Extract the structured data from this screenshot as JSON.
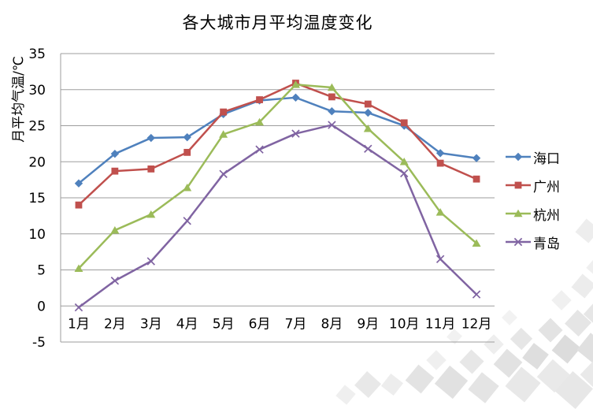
{
  "chart_data": {
    "type": "line",
    "title": "各大城市月平均温度变化",
    "ylabel": "月平均气温/℃",
    "xlabel": "",
    "categories": [
      "1月",
      "2月",
      "3月",
      "4月",
      "5月",
      "6月",
      "7月",
      "8月",
      "9月",
      "10月",
      "11月",
      "12月"
    ],
    "series": [
      {
        "name": "海口",
        "slug": "haikou",
        "marker": "diamond",
        "color": "#4F81BD",
        "values": [
          17.0,
          21.1,
          23.3,
          23.4,
          26.6,
          28.5,
          28.9,
          27.0,
          26.8,
          25.0,
          21.2,
          20.5
        ]
      },
      {
        "name": "广州",
        "slug": "guangzhou",
        "marker": "square",
        "color": "#C0504D",
        "values": [
          14.0,
          18.7,
          19.0,
          21.3,
          26.9,
          28.6,
          30.9,
          29.0,
          28.0,
          25.4,
          19.8,
          17.6
        ]
      },
      {
        "name": "杭州",
        "slug": "hangzhou",
        "marker": "triangle",
        "color": "#9BBB59",
        "values": [
          5.2,
          10.5,
          12.7,
          16.4,
          23.8,
          25.5,
          30.7,
          30.3,
          24.6,
          20.0,
          13.0,
          8.7
        ]
      },
      {
        "name": "青岛",
        "slug": "qingdao",
        "marker": "x",
        "color": "#8064A2",
        "values": [
          -0.2,
          3.5,
          6.2,
          11.8,
          18.3,
          21.7,
          23.9,
          25.1,
          21.8,
          18.4,
          6.5,
          1.6
        ]
      }
    ],
    "ylim": [
      -5,
      35
    ],
    "yticks": [
      35,
      30,
      25,
      20,
      15,
      10,
      5,
      0,
      -5
    ],
    "grid": true,
    "legend_position": "right",
    "axis_color": "#9d9d9d",
    "text_color": "#000000"
  }
}
